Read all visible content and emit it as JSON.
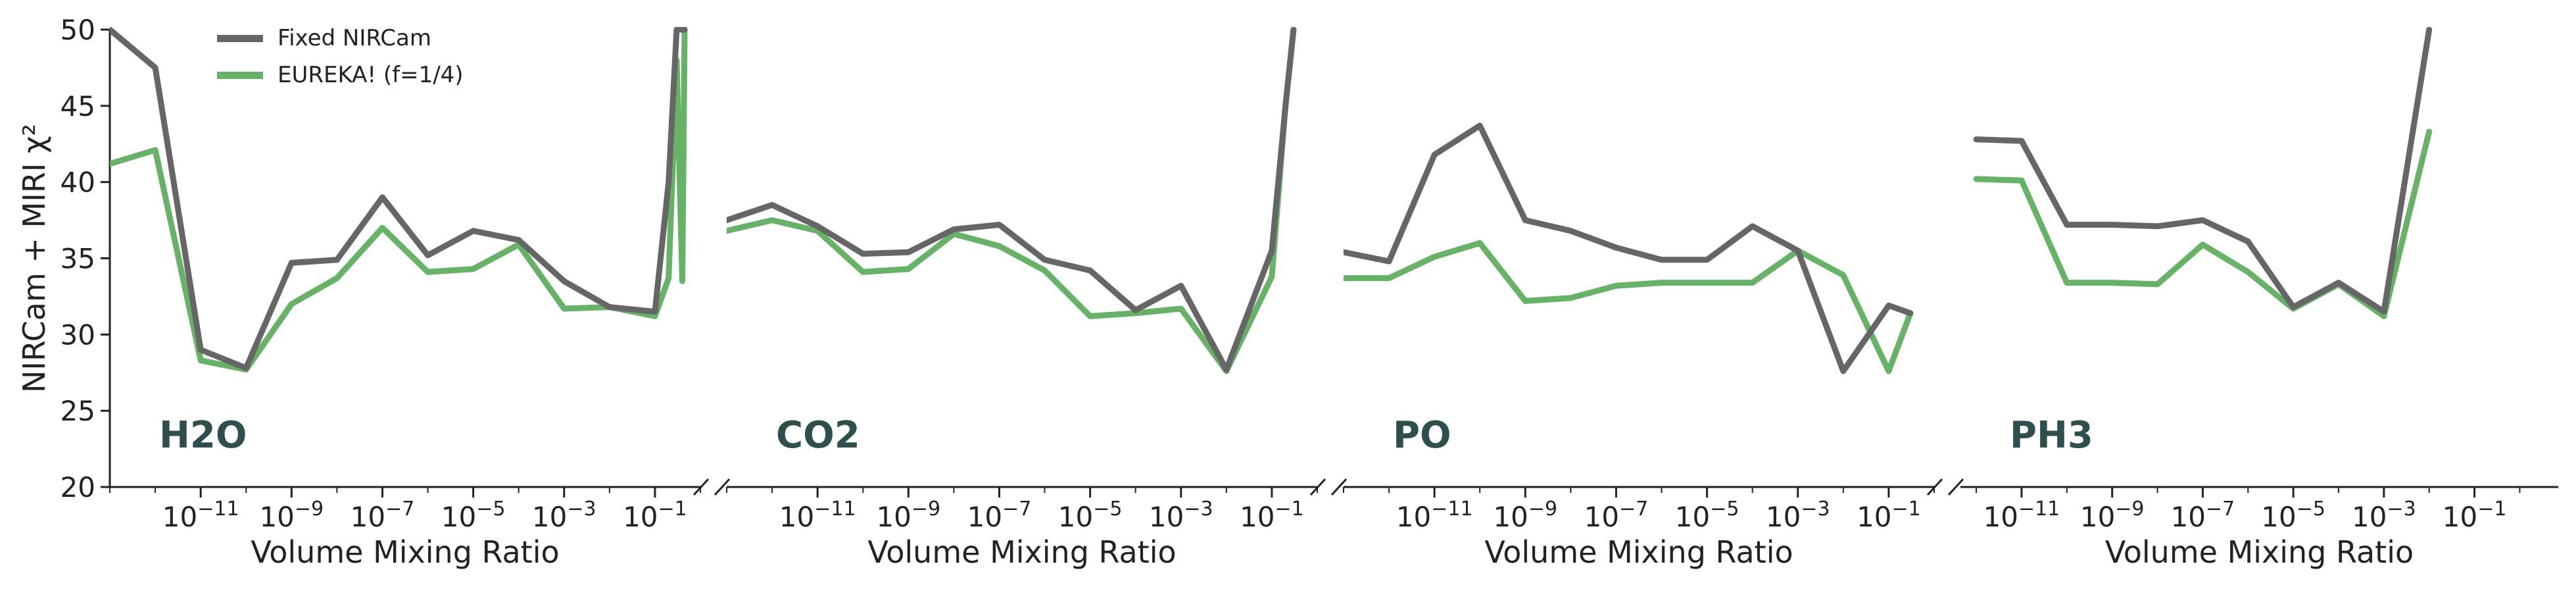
{
  "chart_data": {
    "type": "line",
    "ylabel": "NIRCam + MIRI χ²",
    "ylim": [
      20,
      50
    ],
    "yticks": [
      20,
      25,
      30,
      35,
      40,
      45,
      50
    ],
    "xlabel": "Volume Mixing Ratio",
    "x_scale": "log",
    "xticks": [
      "10^{-11}",
      "10^{-9}",
      "10^{-7}",
      "10^{-5}",
      "10^{-3}",
      "10^{-1}"
    ],
    "colors": {
      "Fixed NIRCam": "#666666",
      "EUREKA! (f=1/4)": "#66b266",
      "label": "#2f4f4f"
    },
    "legend": {
      "placement": "top-left",
      "entries": [
        "Fixed NIRCam",
        "EUREKA! (f=1/4)"
      ]
    },
    "panels": [
      {
        "label": "H2O",
        "series": [
          {
            "name": "Fixed NIRCam",
            "x": [
              "1e-13",
              "1e-12",
              "1e-11",
              "1e-10",
              "1e-9",
              "1e-8",
              "1e-7",
              "1e-6",
              "1e-5",
              "1e-4",
              "1e-3",
              "1e-2",
              "1e-1",
              "0.2",
              "0.3",
              "0.45"
            ],
            "y": [
              50,
              47.5,
              29,
              27.8,
              34.7,
              34.9,
              39,
              35.2,
              36.8,
              36.2,
              33.5,
              31.8,
              31.5,
              40,
              50,
              50
            ]
          },
          {
            "name": "EUREKA! (f=1/4)",
            "x": [
              "1e-13",
              "1e-12",
              "1e-11",
              "1e-10",
              "1e-9",
              "1e-8",
              "1e-7",
              "1e-6",
              "1e-5",
              "1e-4",
              "1e-3",
              "1e-2",
              "1e-1",
              "0.2",
              "0.3",
              "0.4",
              "0.45"
            ],
            "y": [
              41.2,
              42.1,
              28.3,
              27.7,
              32,
              33.7,
              37,
              34.1,
              34.3,
              35.9,
              31.7,
              31.8,
              31.2,
              33.7,
              48,
              33.5,
              50
            ]
          }
        ]
      },
      {
        "label": "CO2",
        "series": [
          {
            "name": "Fixed NIRCam",
            "x": [
              "1e-13",
              "1e-12",
              "1e-11",
              "1e-10",
              "1e-9",
              "1e-8",
              "1e-7",
              "1e-6",
              "1e-5",
              "1e-4",
              "1e-3",
              "1e-2",
              "1e-1",
              "0.2",
              "0.3"
            ],
            "y": [
              37.5,
              38.5,
              37.1,
              35.3,
              35.4,
              36.9,
              37.2,
              34.9,
              34.2,
              31.6,
              33.2,
              27.7,
              35.5,
              45,
              50
            ]
          },
          {
            "name": "EUREKA! (f=1/4)",
            "x": [
              "1e-13",
              "1e-12",
              "1e-11",
              "1e-10",
              "1e-9",
              "1e-8",
              "1e-7",
              "1e-6",
              "1e-5",
              "1e-4",
              "1e-3",
              "1e-2",
              "1e-1",
              "0.2",
              "0.3"
            ],
            "y": [
              36.8,
              37.5,
              36.8,
              34.1,
              34.3,
              36.6,
              35.8,
              34.2,
              31.2,
              31.4,
              31.7,
              27.6,
              33.8,
              45,
              50
            ]
          }
        ]
      },
      {
        "label": "PO",
        "series": [
          {
            "name": "Fixed NIRCam",
            "x": [
              "1e-13",
              "1e-12",
              "1e-11",
              "1e-10",
              "1e-9",
              "1e-8",
              "1e-7",
              "1e-6",
              "1e-5",
              "1e-4",
              "1e-3",
              "1e-2",
              "1e-1",
              "0.3"
            ],
            "y": [
              35.4,
              34.8,
              41.8,
              43.7,
              37.5,
              36.8,
              35.7,
              34.9,
              34.9,
              37.1,
              35.5,
              27.6,
              31.9,
              31.4
            ]
          },
          {
            "name": "EUREKA! (f=1/4)",
            "x": [
              "1e-13",
              "1e-12",
              "1e-11",
              "1e-10",
              "1e-9",
              "1e-8",
              "1e-7",
              "1e-6",
              "1e-5",
              "1e-4",
              "1e-3",
              "1e-2",
              "1e-1",
              "0.3"
            ],
            "y": [
              33.7,
              33.7,
              35.1,
              36,
              32.2,
              32.4,
              33.2,
              33.4,
              33.4,
              33.4,
              35.5,
              33.9,
              27.6,
              31.4
            ]
          }
        ]
      },
      {
        "label": "PH3",
        "series": [
          {
            "name": "Fixed NIRCam",
            "x": [
              "1e-12",
              "1e-11",
              "1e-10",
              "1e-9",
              "1e-8",
              "1e-7",
              "1e-6",
              "1e-5",
              "1e-4",
              "1e-3",
              "1e-2"
            ],
            "y": [
              42.8,
              42.7,
              37.2,
              37.2,
              37.1,
              37.5,
              36.1,
              31.8,
              33.4,
              31.5,
              50
            ]
          },
          {
            "name": "EUREKA! (f=1/4)",
            "x": [
              "1e-12",
              "1e-11",
              "1e-10",
              "1e-9",
              "1e-8",
              "1e-7",
              "1e-6",
              "1e-5",
              "1e-4",
              "1e-3",
              "1e-2"
            ],
            "y": [
              40.2,
              40.1,
              33.4,
              33.4,
              33.3,
              35.9,
              34.1,
              31.7,
              33.3,
              31.2,
              43.3
            ]
          }
        ]
      }
    ]
  }
}
